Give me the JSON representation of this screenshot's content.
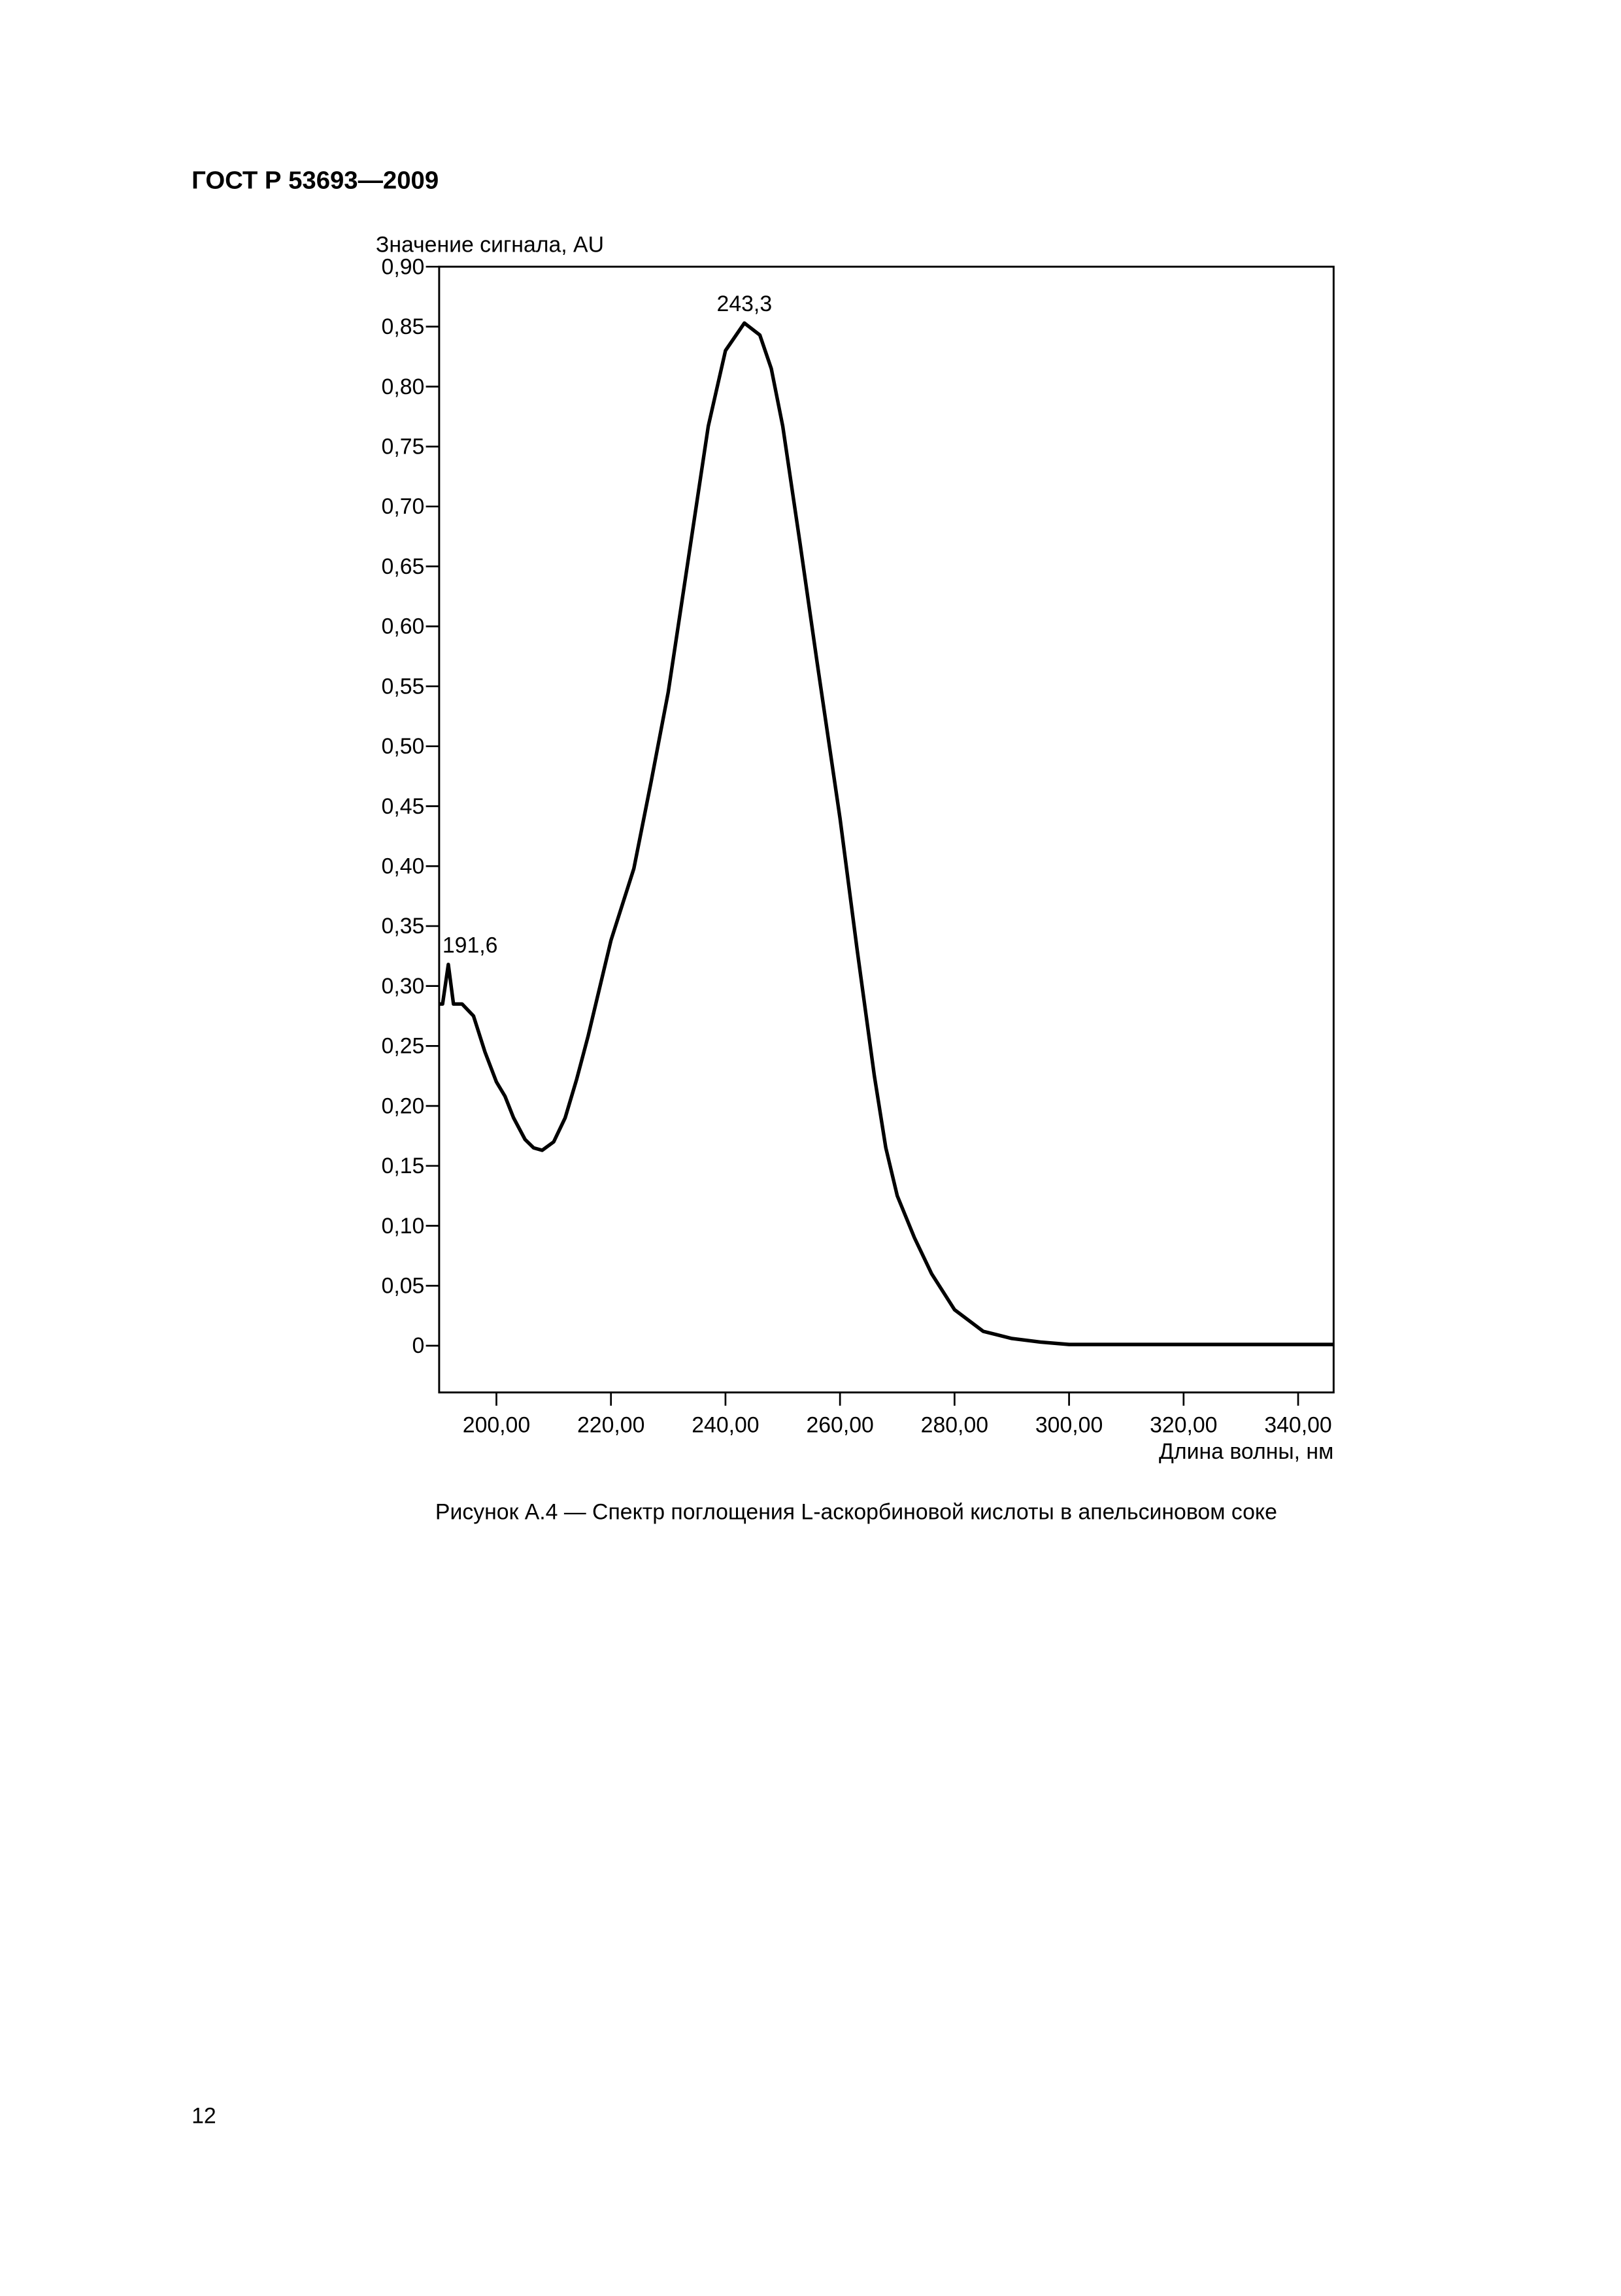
{
  "header": "ГОСТ Р 53693—2009",
  "page_number": "12",
  "chart_data": {
    "type": "line",
    "y_label": "Значение сигнала, AU",
    "x_label": "Длина волны, нм",
    "caption": "Рисунок А.4 — Спектр поглощения L-аскорбиновой кислоты в апельсиновом соке",
    "xlim": [
      190,
      346.2
    ],
    "ylim": [
      -0.039,
      0.9
    ],
    "xticks": [
      {
        "value": 200,
        "label": "200,00"
      },
      {
        "value": 220,
        "label": "220,00"
      },
      {
        "value": 240,
        "label": "240,00"
      },
      {
        "value": 260,
        "label": "260,00"
      },
      {
        "value": 280,
        "label": "280,00"
      },
      {
        "value": 300,
        "label": "300,00"
      },
      {
        "value": 320,
        "label": "320,00"
      },
      {
        "value": 340,
        "label": "340,00"
      }
    ],
    "yticks": [
      0,
      {
        "value": 0.05,
        "label": "0,05"
      },
      {
        "value": 0.1,
        "label": "0,10"
      },
      {
        "value": 0.15,
        "label": "0,15"
      },
      {
        "value": 0.2,
        "label": "0,20"
      },
      {
        "value": 0.25,
        "label": "0,25"
      },
      {
        "value": 0.3,
        "label": "0,30"
      },
      {
        "value": 0.35,
        "label": "0,35"
      },
      {
        "value": 0.4,
        "label": "0,40"
      },
      {
        "value": 0.45,
        "label": "0,45"
      },
      {
        "value": 0.5,
        "label": "0,50"
      },
      {
        "value": 0.55,
        "label": "0,55"
      },
      {
        "value": 0.6,
        "label": "0,60"
      },
      {
        "value": 0.65,
        "label": "0,65"
      },
      {
        "value": 0.7,
        "label": "0,70"
      },
      {
        "value": 0.75,
        "label": "0,75"
      },
      {
        "value": 0.8,
        "label": "0,80"
      },
      {
        "value": 0.85,
        "label": "0,85"
      },
      {
        "value": 0.9,
        "label": "0,90"
      }
    ],
    "grid": false,
    "color": "#000000",
    "x": [
      190,
      190.6,
      191.6,
      192.5,
      194,
      196,
      198,
      200,
      201.5,
      203,
      205,
      206.5,
      208,
      210,
      212,
      214,
      216,
      218,
      220,
      224,
      227,
      230,
      233,
      237,
      240,
      243.3,
      246,
      248,
      250,
      253,
      256,
      260,
      263,
      266,
      268,
      270,
      273,
      276,
      280,
      285,
      290,
      295,
      300,
      320,
      346.2
    ],
    "values": [
      0.285,
      0.285,
      0.318,
      0.285,
      0.285,
      0.275,
      0.245,
      0.22,
      0.208,
      0.19,
      0.172,
      0.165,
      0.163,
      0.17,
      0.19,
      0.222,
      0.258,
      0.298,
      0.338,
      0.398,
      0.47,
      0.545,
      0.64,
      0.767,
      0.83,
      0.853,
      0.843,
      0.815,
      0.767,
      0.67,
      0.57,
      0.44,
      0.33,
      0.225,
      0.165,
      0.125,
      0.09,
      0.06,
      0.03,
      0.012,
      0.006,
      0.003,
      0.001,
      0.001,
      0.001
    ],
    "annotations": [
      {
        "label": "191,6",
        "x": 191.6,
        "y": 0.318
      },
      {
        "label": "243,3",
        "x": 243.3,
        "y": 0.853
      }
    ]
  }
}
